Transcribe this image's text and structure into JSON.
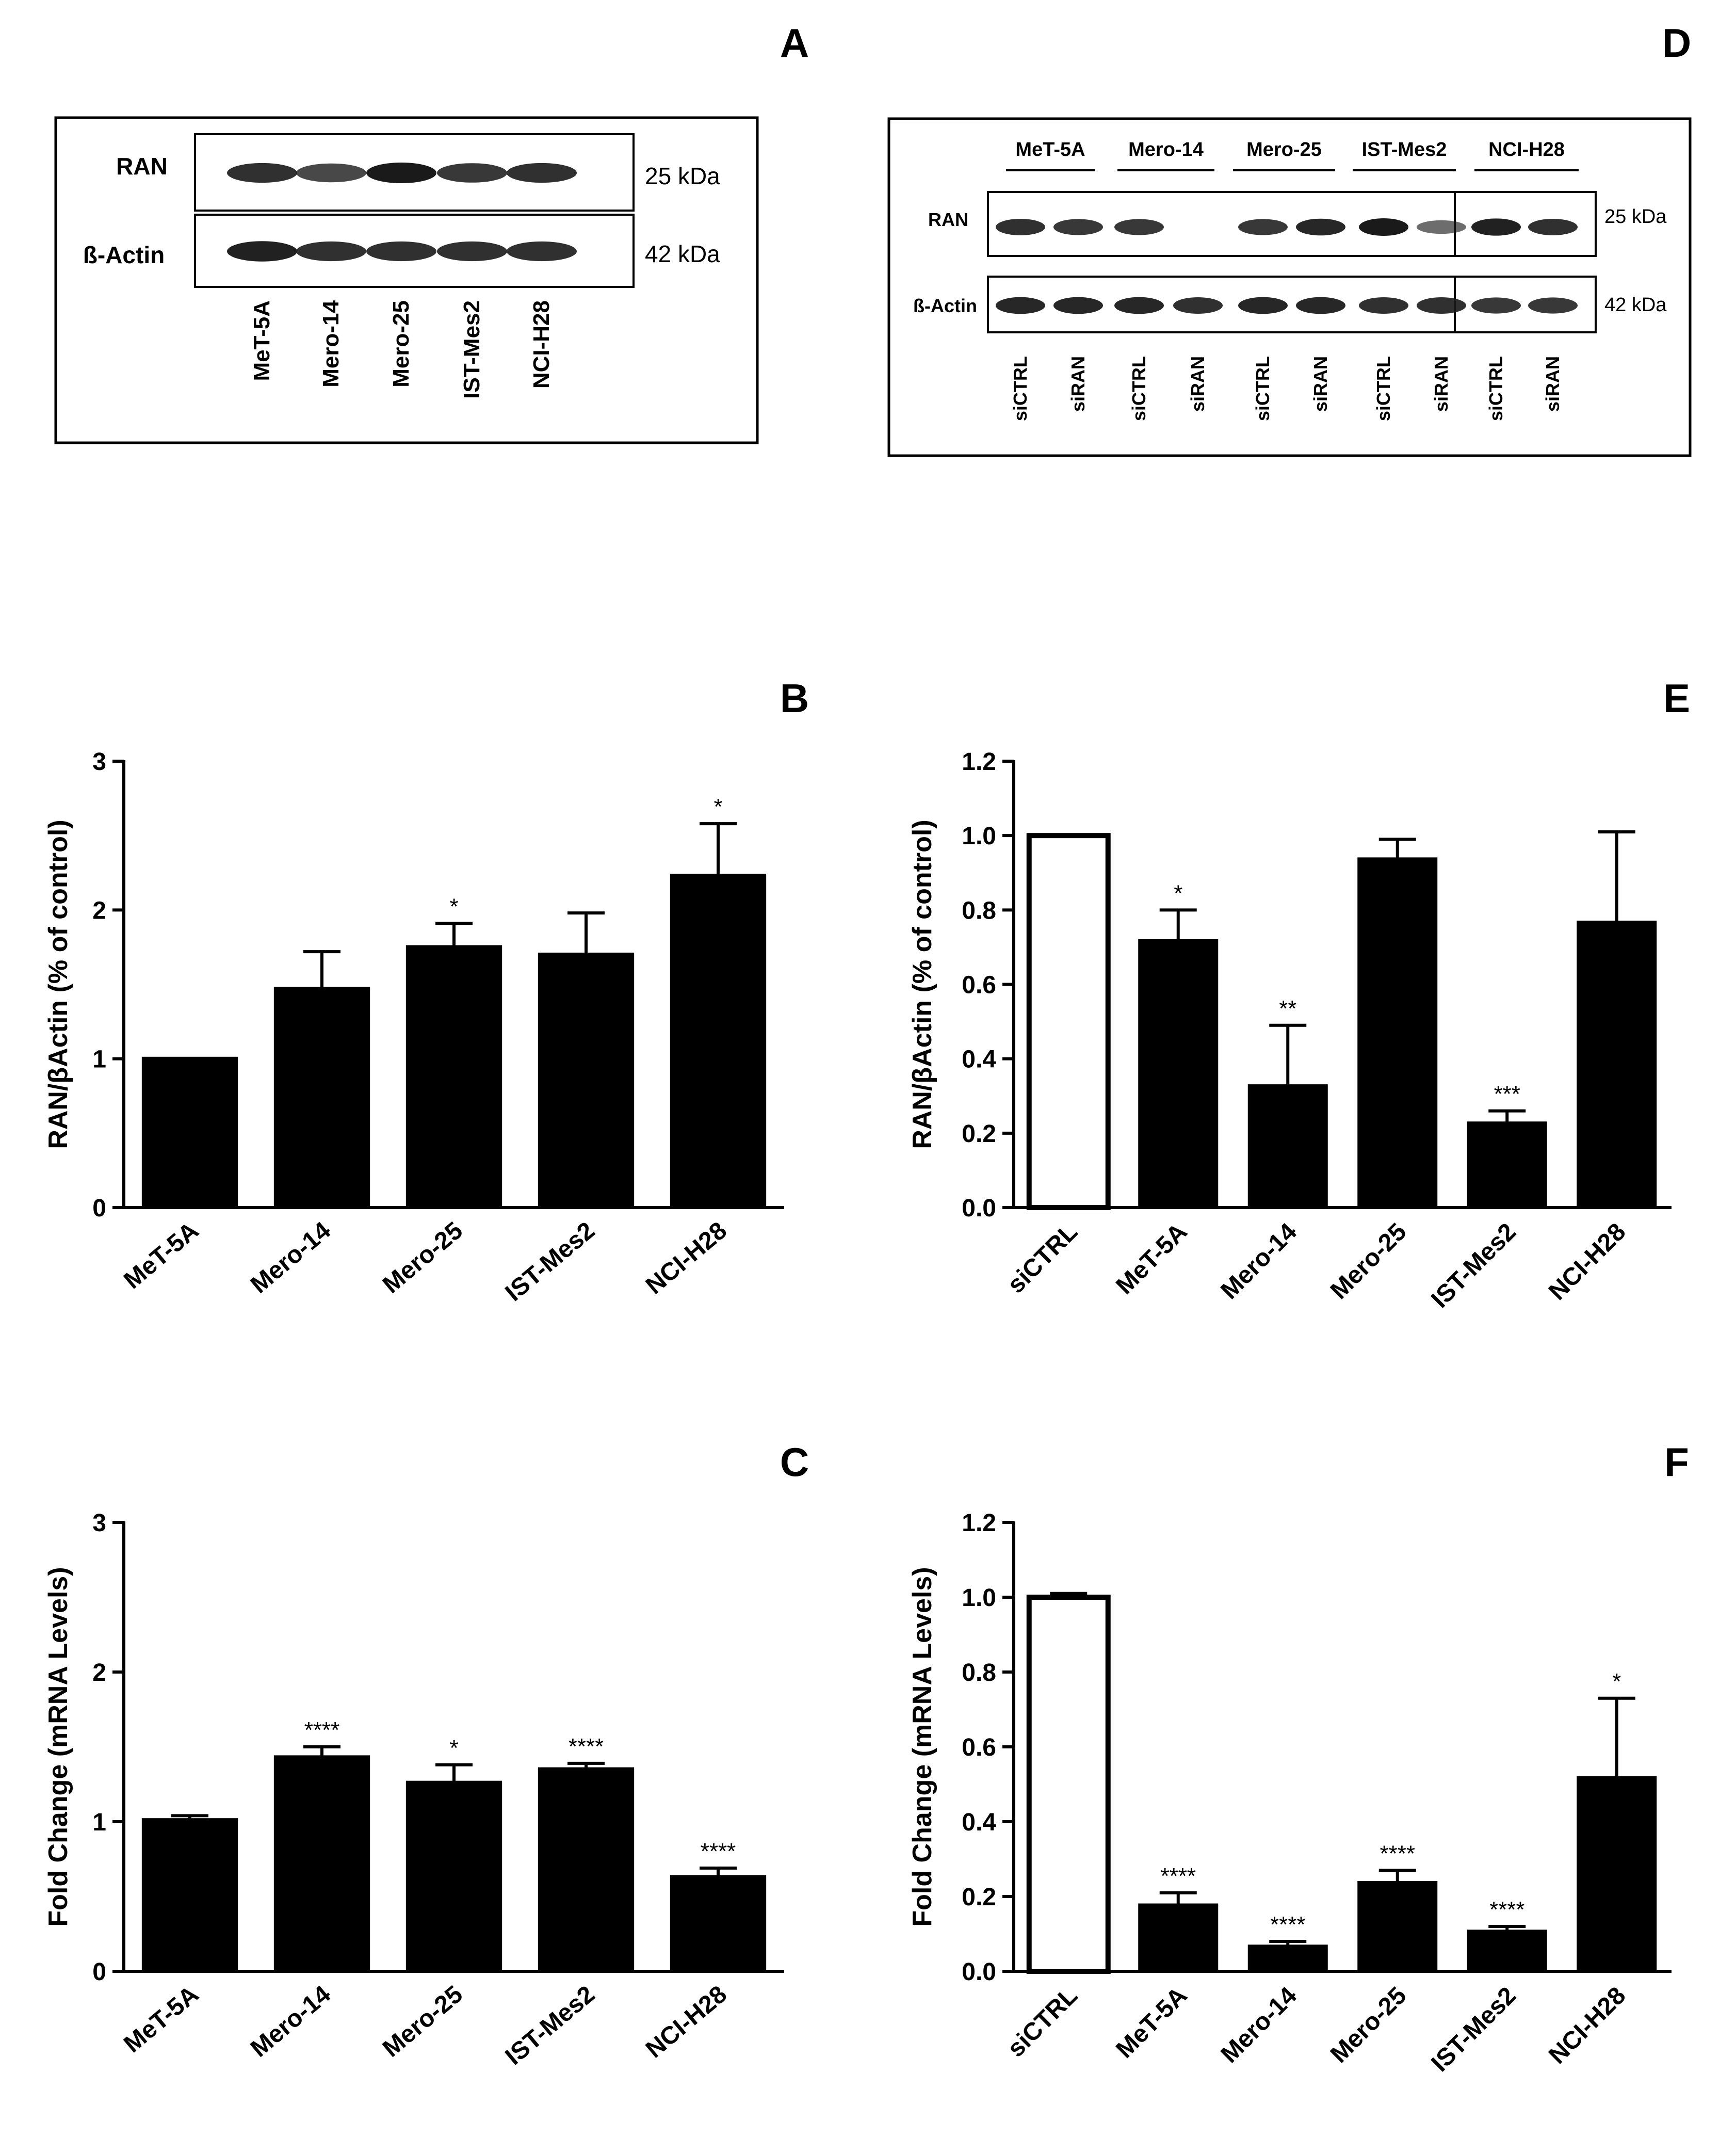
{
  "colors": {
    "bar_fill": "#000000",
    "control_fill": "#ffffff",
    "band": "#1a1a1a",
    "frame": "#000000"
  },
  "panels": {
    "A": {
      "letter": "A"
    },
    "D": {
      "letter": "D"
    }
  },
  "blot_a": {
    "rows": [
      {
        "label": "RAN",
        "kda": "25 kDa",
        "band_intensity": [
          0.85,
          0.7,
          1.0,
          0.8,
          0.85
        ]
      },
      {
        "label": "ß-Actin",
        "kda": "42 kDa",
        "band_intensity": [
          0.95,
          0.85,
          0.85,
          0.85,
          0.85
        ]
      }
    ],
    "lanes": [
      "MeT-5A",
      "Mero-14",
      "Mero-25",
      "IST-Mes2",
      "NCI-H28"
    ]
  },
  "blot_d": {
    "groups": [
      "MeT-5A",
      "Mero-14",
      "Mero-25",
      "IST-Mes2",
      "NCI-H28"
    ],
    "rows": [
      {
        "label": "RAN",
        "kda": "25 kDa",
        "band_intensity": [
          0.85,
          0.8,
          0.8,
          0.0,
          0.8,
          0.9,
          1.0,
          0.45,
          0.95,
          0.85
        ]
      },
      {
        "label": "ß-Actin",
        "kda": "42 kDa",
        "band_intensity": [
          0.9,
          0.9,
          0.9,
          0.85,
          0.9,
          0.9,
          0.85,
          0.85,
          0.8,
          0.8
        ]
      }
    ],
    "lanes": [
      "siCTRL",
      "siRAN",
      "siCTRL",
      "siRAN",
      "siCTRL",
      "siRAN",
      "siCTRL",
      "siRAN",
      "siCTRL",
      "siRAN"
    ]
  },
  "chart_data": [
    {
      "panel": "B",
      "type": "bar",
      "ylabel": "RAN/βActin (% of control)",
      "ylim": [
        0,
        3
      ],
      "yticks": [
        "0",
        "1",
        "2",
        "3"
      ],
      "categories": [
        "MeT-5A",
        "Mero-14",
        "Mero-25",
        "IST-Mes2",
        "NCI-H28"
      ],
      "values": [
        1.01,
        1.48,
        1.76,
        1.71,
        2.24
      ],
      "errors": [
        0,
        0.24,
        0.15,
        0.27,
        0.34
      ],
      "significance": [
        "",
        "",
        "*",
        "",
        "*"
      ],
      "control_index": -1
    },
    {
      "panel": "C",
      "type": "bar",
      "ylabel": "Fold Change (mRNA Levels)",
      "ylim": [
        0,
        3
      ],
      "yticks": [
        "0",
        "1",
        "2",
        "3"
      ],
      "categories": [
        "MeT-5A",
        "Mero-14",
        "Mero-25",
        "IST-Mes2",
        "NCI-H28"
      ],
      "values": [
        1.02,
        1.44,
        1.27,
        1.36,
        0.64
      ],
      "errors": [
        0.02,
        0.06,
        0.11,
        0.03,
        0.05
      ],
      "significance": [
        "",
        "****",
        "*",
        "****",
        "****"
      ],
      "control_index": -1
    },
    {
      "panel": "E",
      "type": "bar",
      "ylabel": "RAN/βActin (% of control)",
      "ylim": [
        0,
        1.2
      ],
      "yticks": [
        "0.0",
        "0.2",
        "0.4",
        "0.6",
        "0.8",
        "1.0",
        "1.2"
      ],
      "categories": [
        "siCTRL",
        "MeT-5A",
        "Mero-14",
        "Mero-25",
        "IST-Mes2",
        "NCI-H28"
      ],
      "values": [
        1.0,
        0.72,
        0.33,
        0.94,
        0.23,
        0.77
      ],
      "errors": [
        0,
        0.08,
        0.16,
        0.05,
        0.03,
        0.24
      ],
      "significance": [
        "",
        "*",
        "**",
        "",
        "***",
        ""
      ],
      "control_index": 0
    },
    {
      "panel": "F",
      "type": "bar",
      "ylabel": "Fold Change (mRNA Levels)",
      "ylim": [
        0,
        1.2
      ],
      "yticks": [
        "0.0",
        "0.2",
        "0.4",
        "0.6",
        "0.8",
        "1.0",
        "1.2"
      ],
      "categories": [
        "siCTRL",
        "MeT-5A",
        "Mero-14",
        "Mero-25",
        "IST-Mes2",
        "NCI-H28"
      ],
      "values": [
        1.0,
        0.18,
        0.07,
        0.24,
        0.11,
        0.52
      ],
      "errors": [
        0.01,
        0.03,
        0.01,
        0.03,
        0.01,
        0.21
      ],
      "significance": [
        "",
        "****",
        "****",
        "****",
        "****",
        "*"
      ],
      "control_index": 0
    }
  ]
}
